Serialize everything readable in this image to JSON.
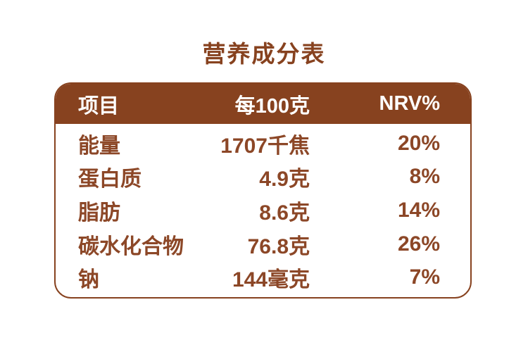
{
  "page": {
    "title": "营养成分表",
    "background_color": "#ffffff"
  },
  "colors": {
    "header_bg": "#87421f",
    "header_text": "#ffffff",
    "body_text": "#8c4727",
    "border": "#87421f",
    "card_bg": "#ffffff",
    "title_text": "#87421f"
  },
  "table": {
    "columns": [
      {
        "label": "项目"
      },
      {
        "label": "每100克"
      },
      {
        "label": "NRV%"
      }
    ],
    "rows": [
      {
        "item": "能量",
        "per100g": "1707千焦",
        "nrv": "20%"
      },
      {
        "item": "蛋白质",
        "per100g": "4.9克",
        "nrv": "8%"
      },
      {
        "item": "脂肪",
        "per100g": "8.6克",
        "nrv": "14%"
      },
      {
        "item": "碳水化合物",
        "per100g": "76.8克",
        "nrv": "26%"
      },
      {
        "item": "钠",
        "per100g": "144毫克",
        "nrv": "7%"
      }
    ]
  }
}
